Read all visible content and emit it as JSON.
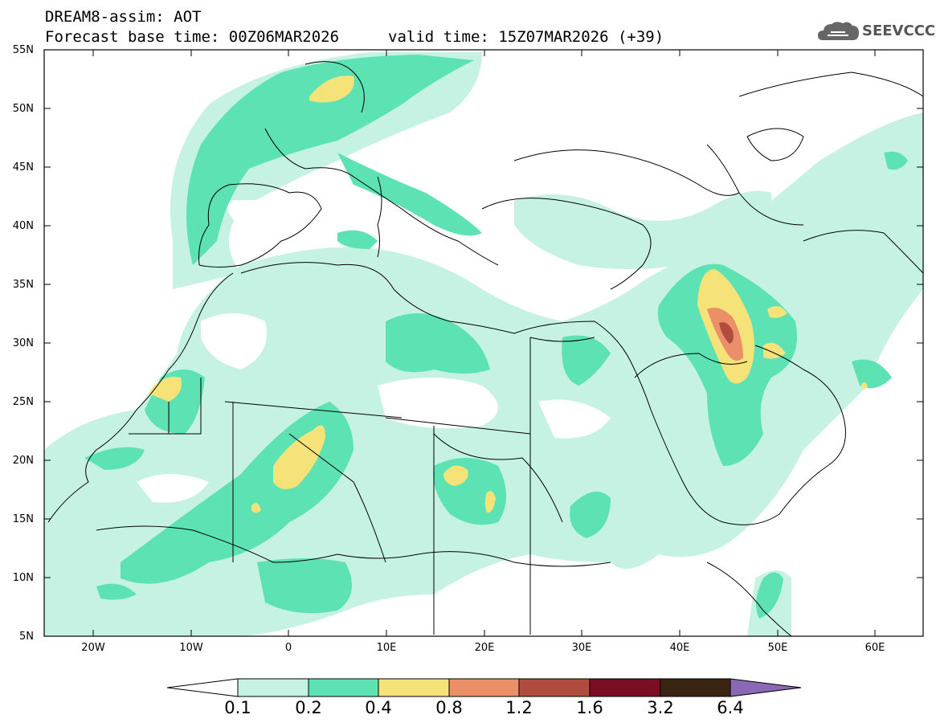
{
  "header": {
    "title_line1": "DREAM8-assim: AOT",
    "title_line2": "Forecast base time: 00Z06MAR2026",
    "valid_time": "valid time: 15Z07MAR2026 (+39)"
  },
  "logo": {
    "text": "SEEVCCC",
    "icon": "cloud-icon"
  },
  "map": {
    "lat_labels": [
      "55N",
      "50N",
      "45N",
      "40N",
      "35N",
      "30N",
      "25N",
      "20N",
      "15N",
      "10N",
      "5N"
    ],
    "lon_labels": [
      "20W",
      "10W",
      "0",
      "10E",
      "20E",
      "30E",
      "40E",
      "50E",
      "60E"
    ]
  },
  "colorbar": {
    "labels": [
      "0.1",
      "0.2",
      "0.4",
      "0.8",
      "1.2",
      "1.6",
      "3.2",
      "6.4"
    ],
    "colors": [
      "#c6f2e4",
      "#5de2b4",
      "#f5e37a",
      "#ea8f68",
      "#b04b40",
      "#7a0f24",
      "#3a2412",
      "#8a68b5"
    ]
  }
}
